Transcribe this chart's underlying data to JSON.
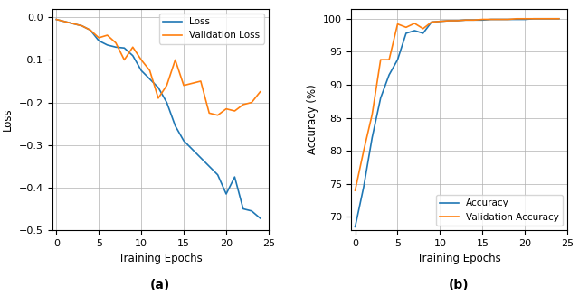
{
  "loss_x": [
    0,
    1,
    2,
    3,
    4,
    5,
    6,
    7,
    8,
    9,
    10,
    11,
    12,
    13,
    14,
    15,
    16,
    17,
    18,
    19,
    20,
    21,
    22,
    23,
    24
  ],
  "loss_y": [
    -0.005,
    -0.01,
    -0.015,
    -0.02,
    -0.03,
    -0.055,
    -0.065,
    -0.07,
    -0.072,
    -0.09,
    -0.125,
    -0.145,
    -0.165,
    -0.2,
    -0.255,
    -0.29,
    -0.31,
    -0.33,
    -0.35,
    -0.37,
    -0.415,
    -0.375,
    -0.45,
    -0.455,
    -0.472
  ],
  "val_loss_x": [
    0,
    1,
    2,
    3,
    4,
    5,
    6,
    7,
    8,
    9,
    10,
    11,
    12,
    13,
    14,
    15,
    16,
    17,
    18,
    19,
    20,
    21,
    22,
    23,
    24
  ],
  "val_loss_y": [
    -0.005,
    -0.01,
    -0.015,
    -0.02,
    -0.03,
    -0.048,
    -0.042,
    -0.06,
    -0.1,
    -0.07,
    -0.1,
    -0.125,
    -0.19,
    -0.16,
    -0.1,
    -0.16,
    -0.155,
    -0.15,
    -0.225,
    -0.23,
    -0.215,
    -0.22,
    -0.205,
    -0.2,
    -0.175
  ],
  "acc_x": [
    0,
    1,
    2,
    3,
    4,
    5,
    6,
    7,
    8,
    9,
    10,
    11,
    12,
    13,
    14,
    15,
    16,
    17,
    18,
    19,
    20,
    21,
    22,
    23,
    24
  ],
  "acc_y": [
    68.5,
    74.5,
    82.0,
    88.0,
    91.5,
    93.8,
    97.8,
    98.2,
    97.8,
    99.5,
    99.6,
    99.7,
    99.7,
    99.8,
    99.8,
    99.8,
    99.9,
    99.9,
    99.9,
    99.9,
    99.9,
    100.0,
    100.0,
    100.0,
    100.0
  ],
  "val_acc_x": [
    0,
    1,
    2,
    3,
    4,
    5,
    6,
    7,
    8,
    9,
    10,
    11,
    12,
    13,
    14,
    15,
    16,
    17,
    18,
    19,
    20,
    21,
    22,
    23,
    24
  ],
  "val_acc_y": [
    74.0,
    80.0,
    85.5,
    93.8,
    93.8,
    99.2,
    98.7,
    99.3,
    98.5,
    99.5,
    99.6,
    99.7,
    99.7,
    99.8,
    99.8,
    99.9,
    99.9,
    99.9,
    99.9,
    100.0,
    100.0,
    100.0,
    100.0,
    100.0,
    100.0
  ],
  "loss_color": "#1f77b4",
  "val_loss_color": "#ff7f0e",
  "acc_color": "#1f77b4",
  "val_acc_color": "#ff7f0e",
  "loss_xlabel": "Training Epochs",
  "loss_ylabel": "Loss",
  "acc_xlabel": "Training Epochs",
  "acc_ylabel": "Accuracy (%)",
  "loss_legend_labels": [
    "Loss",
    "Validation Loss"
  ],
  "acc_legend_labels": [
    "Accuracy",
    "Validation Accuracy"
  ],
  "loss_ylim": [
    -0.5,
    0.02
  ],
  "loss_xlim": [
    -0.5,
    25
  ],
  "acc_ylim": [
    68,
    101.5
  ],
  "acc_xlim": [
    -0.5,
    25
  ],
  "label_a": "(a)",
  "label_b": "(b)",
  "bg_color": "#ffffff",
  "grid_color": "#b0b0b0"
}
